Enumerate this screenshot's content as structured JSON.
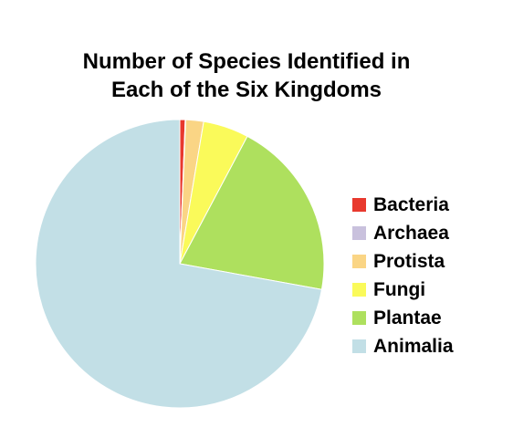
{
  "chart_data": {
    "type": "pie",
    "title": "Number of Species Identified in\nEach of the Six Kingdoms",
    "legend_position": "right",
    "slices": [
      {
        "label": "Bacteria",
        "value": 0.6,
        "color": "#e8392e"
      },
      {
        "label": "Archaea",
        "value": 0.05,
        "color": "#c9c1dd"
      },
      {
        "label": "Protista",
        "value": 2.0,
        "color": "#fad585"
      },
      {
        "label": "Fungi",
        "value": 5.1,
        "color": "#fafa5a"
      },
      {
        "label": "Plantae",
        "value": 20.1,
        "color": "#aee05e"
      },
      {
        "label": "Animalia",
        "value": 72.1,
        "color": "#c2dfe6"
      }
    ]
  }
}
